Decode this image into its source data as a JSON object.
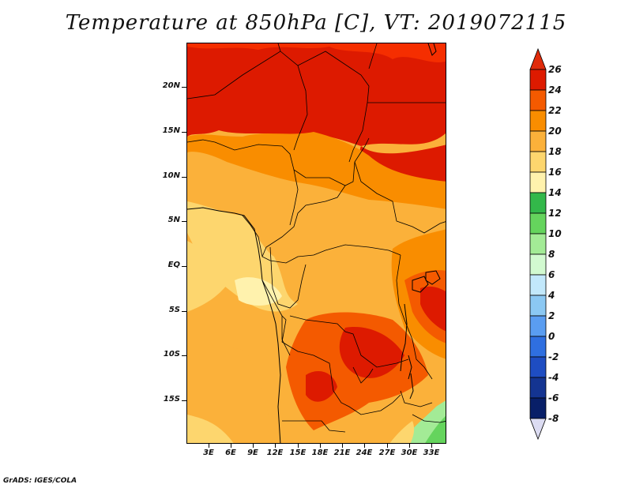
{
  "title": "Temperature at 850hPa [C], VT: 2019072115",
  "footer": "GrADS: IGES/COLA",
  "axes": {
    "lat_labels": [
      "20N",
      "15N",
      "10N",
      "5N",
      "EQ",
      "5S",
      "10S",
      "15S"
    ],
    "lon_labels": [
      "3E",
      "6E",
      "9E",
      "12E",
      "15E",
      "18E",
      "21E",
      "24E",
      "27E",
      "30E",
      "33E"
    ]
  },
  "colorbar": {
    "labels": [
      "26",
      "24",
      "22",
      "20",
      "18",
      "16",
      "14",
      "12",
      "10",
      "8",
      "6",
      "4",
      "2",
      "0",
      "-2",
      "-4",
      "-6",
      "-8"
    ],
    "colors": [
      "#f52e00",
      "#dd1a00",
      "#f45a00",
      "#f98d00",
      "#fbb13a",
      "#fdd66e",
      "#fff2ad",
      "#33b84a",
      "#65d45d",
      "#a3eb96",
      "#d2fad0",
      "#c2e8fb",
      "#8bc8f3",
      "#5a9df1",
      "#2f6fe0",
      "#1e4dc2",
      "#143491",
      "#081f68"
    ],
    "over_color": "#e02b0b",
    "under_color": "#dcdcf2"
  }
}
